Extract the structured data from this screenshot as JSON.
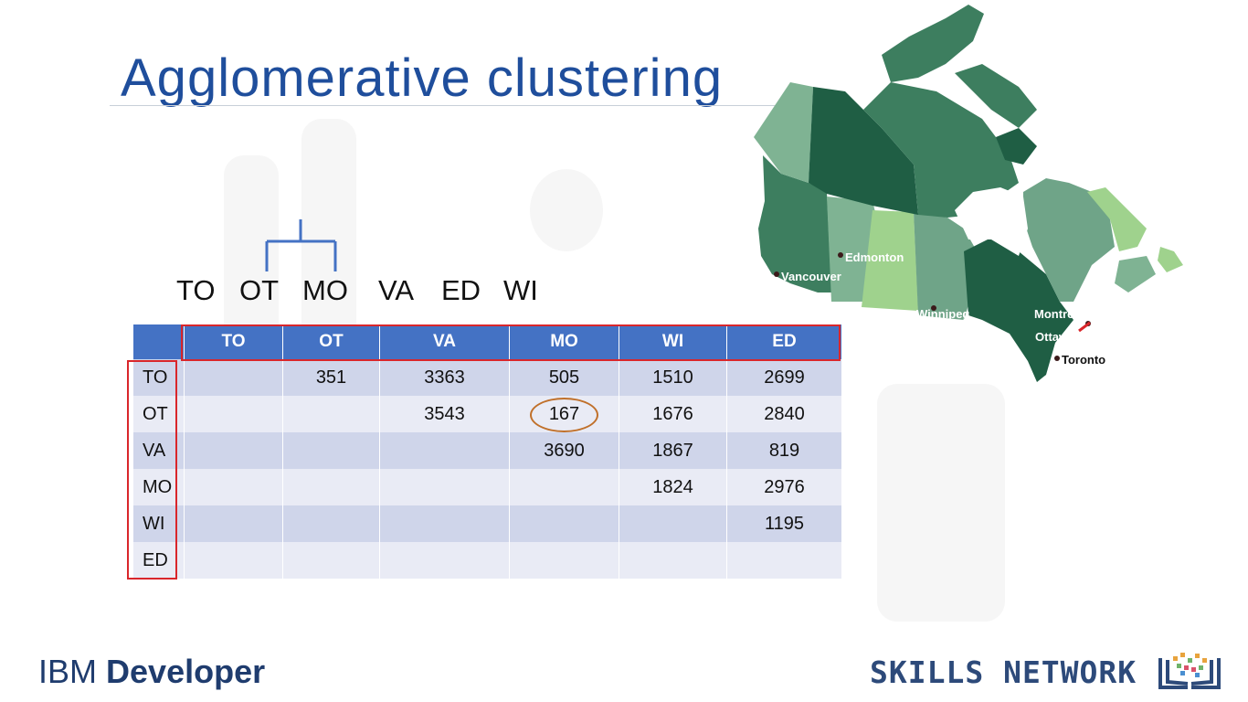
{
  "slide": {
    "title": "Agglomerative clustering",
    "dendrogram_labels": [
      "TO",
      "OT",
      "MO",
      "VA",
      "ED",
      "WI"
    ],
    "matrix": {
      "columns": [
        "TO",
        "OT",
        "VA",
        "MO",
        "WI",
        "ED"
      ],
      "rows": [
        {
          "label": "TO",
          "cells": [
            "",
            "351",
            "3363",
            "505",
            "1510",
            "2699"
          ]
        },
        {
          "label": "OT",
          "cells": [
            "",
            "",
            "3543",
            "167",
            "1676",
            "2840"
          ]
        },
        {
          "label": "VA",
          "cells": [
            "",
            "",
            "",
            "3690",
            "1867",
            "819"
          ]
        },
        {
          "label": "MO",
          "cells": [
            "",
            "",
            "",
            "",
            "1824",
            "2976"
          ]
        },
        {
          "label": "WI",
          "cells": [
            "",
            "",
            "",
            "",
            "",
            "1195"
          ]
        },
        {
          "label": "ED",
          "cells": [
            "",
            "",
            "",
            "",
            "",
            ""
          ]
        }
      ],
      "highlighted_value": "167"
    },
    "map": {
      "cities": [
        "Edmonton",
        "Vancouver",
        "Winnipeg",
        "Montreal",
        "Ottawa",
        "Toronto"
      ]
    },
    "footer": {
      "brand_light": "IBM",
      "brand_bold": "Developer",
      "network": "SKILLS NETWORK"
    },
    "colors": {
      "title": "#1f4e9c",
      "header": "#4472c4",
      "row_odd": "#cfd5ea",
      "row_even": "#e9ebf5",
      "highlight_box": "#d9262b",
      "circle": "#c0702a",
      "dendrogram": "#4472c4"
    }
  }
}
